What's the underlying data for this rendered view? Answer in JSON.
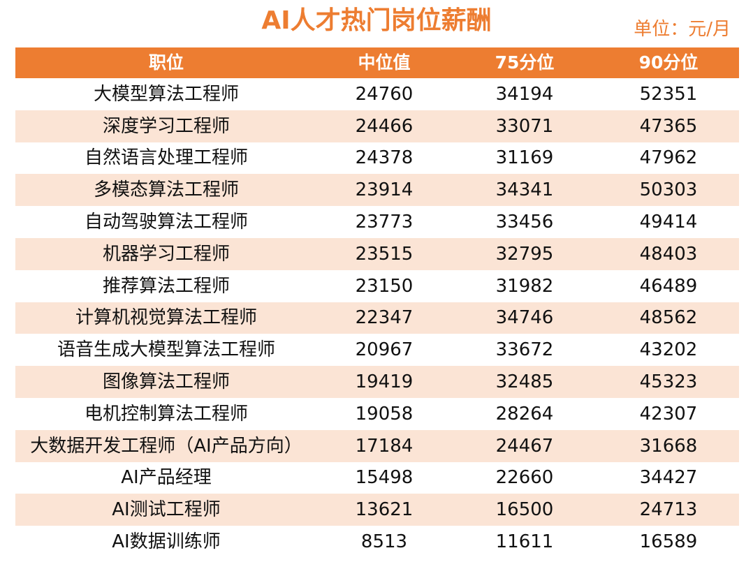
{
  "title": "AI人才热门岗位薪酬",
  "unit": "单位：元/月",
  "colors": {
    "accent": "#ED7D31",
    "stripe": "#FBE4D5"
  },
  "chart_data": {
    "type": "table",
    "columns": [
      "职位",
      "中位值",
      "75分位",
      "90分位"
    ],
    "rows": [
      [
        "大模型算法工程师",
        "24760",
        "34194",
        "52351"
      ],
      [
        "深度学习工程师",
        "24466",
        "33071",
        "47365"
      ],
      [
        "自然语言处理工程师",
        "24378",
        "31169",
        "47962"
      ],
      [
        "多模态算法工程师",
        "23914",
        "34341",
        "50303"
      ],
      [
        "自动驾驶算法工程师",
        "23773",
        "33456",
        "49414"
      ],
      [
        "机器学习工程师",
        "23515",
        "32795",
        "48403"
      ],
      [
        "推荐算法工程师",
        "23150",
        "31982",
        "46489"
      ],
      [
        "计算机视觉算法工程师",
        "22347",
        "34746",
        "48562"
      ],
      [
        "语音生成大模型算法工程师",
        "20967",
        "33672",
        "43202"
      ],
      [
        "图像算法工程师",
        "19419",
        "32485",
        "45323"
      ],
      [
        "电机控制算法工程师",
        "19058",
        "28264",
        "42307"
      ],
      [
        "大数据开发工程师（AI产品方向）",
        "17184",
        "24467",
        "31668"
      ],
      [
        "AI产品经理",
        "15498",
        "22660",
        "34427"
      ],
      [
        "AI测试工程师",
        "13621",
        "16500",
        "24713"
      ],
      [
        "AI数据训练师",
        "8513",
        "11611",
        "16589"
      ]
    ]
  }
}
